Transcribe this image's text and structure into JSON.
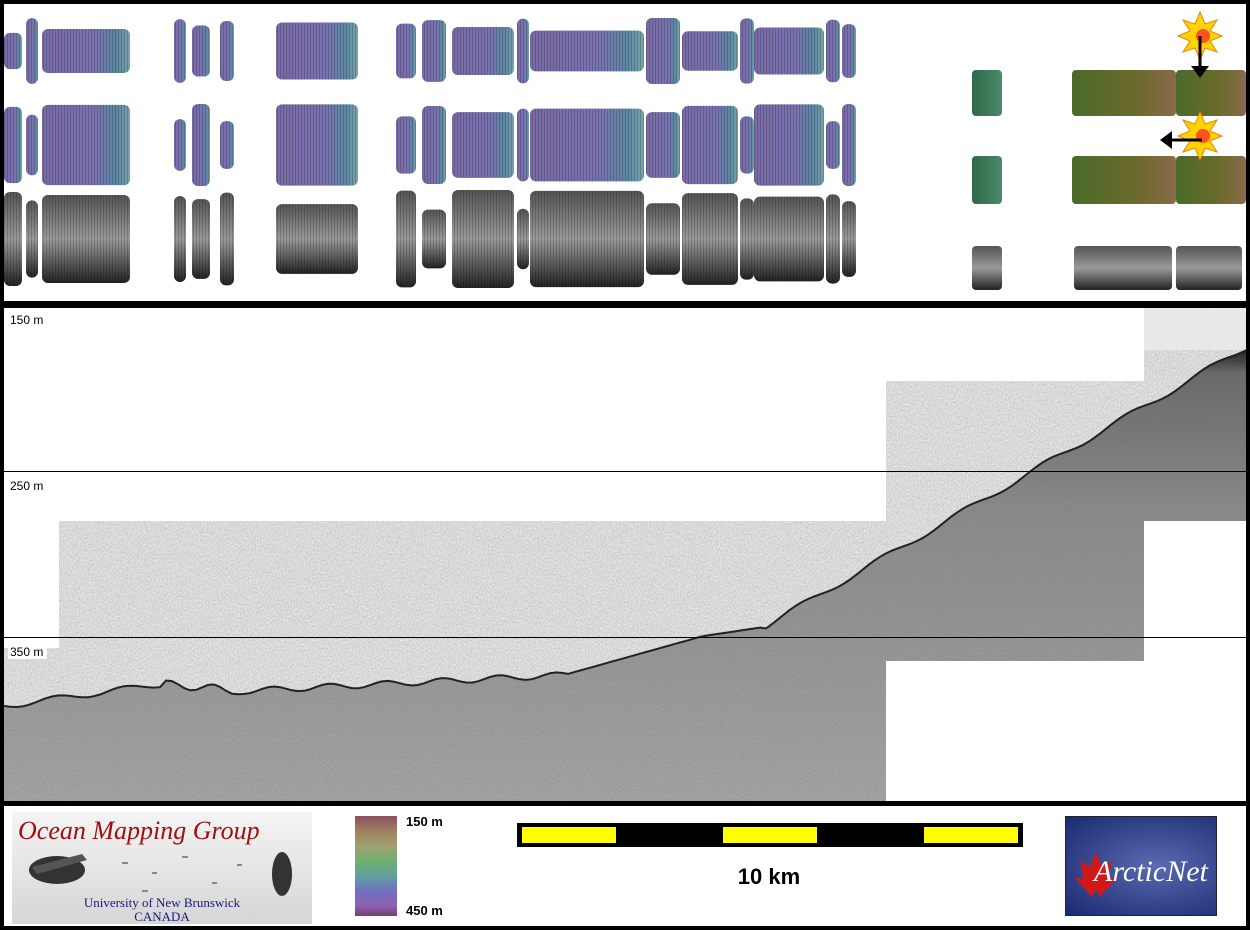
{
  "depth_labels": {
    "d150": "150 m",
    "d250": "250 m",
    "d350": "350 m"
  },
  "colorbar": {
    "top_label": "150 m",
    "bottom_label": "450 m"
  },
  "scalebar": {
    "label": "10 km"
  },
  "logos": {
    "omg_title": "Ocean Mapping Group",
    "omg_univ": "University of New Brunswick",
    "omg_country": "CANADA",
    "arcticnet": "ArcticNet"
  },
  "colors": {
    "background": "#000000",
    "panel": "#ffffff",
    "scale_segment": "#ffff00",
    "profile_noise": "#e6e6e6"
  }
}
